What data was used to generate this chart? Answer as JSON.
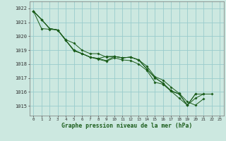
{
  "title": "Graphe pression niveau de la mer (hPa)",
  "bg_color": "#cce8e0",
  "grid_color": "#99cccc",
  "line_color": "#1a5c1a",
  "xlim": [
    -0.5,
    23.5
  ],
  "ylim": [
    1014.3,
    1022.5
  ],
  "yticks": [
    1015,
    1016,
    1017,
    1018,
    1019,
    1020,
    1021,
    1022
  ],
  "xticks": [
    0,
    1,
    2,
    3,
    4,
    5,
    6,
    7,
    8,
    9,
    10,
    11,
    12,
    13,
    14,
    15,
    16,
    17,
    18,
    19,
    20,
    21,
    22,
    23
  ],
  "line1": [
    1021.8,
    1021.2,
    1020.55,
    1020.45,
    1019.75,
    1019.5,
    1019.0,
    1018.75,
    1018.75,
    1018.5,
    1018.55,
    1018.45,
    1018.5,
    1018.3,
    1017.85,
    1017.1,
    1016.85,
    1016.35,
    1015.9,
    1015.3,
    1015.05,
    1015.5,
    null,
    null
  ],
  "line2": [
    1021.8,
    1021.2,
    1020.55,
    1020.45,
    1019.7,
    1019.0,
    1018.75,
    1018.5,
    1018.4,
    1018.25,
    1018.55,
    1018.45,
    1018.5,
    1018.3,
    1017.65,
    1017.05,
    1016.6,
    1016.1,
    1015.85,
    1015.05,
    1015.85,
    null,
    null,
    null
  ],
  "line3": [
    1021.8,
    1020.55,
    1020.5,
    1020.45,
    1019.7,
    1018.95,
    1018.75,
    1018.5,
    1018.35,
    1018.2,
    1018.45,
    1018.3,
    1018.25,
    1018.0,
    1017.55,
    1016.7,
    1016.55,
    1016.05,
    1015.85,
    1015.05,
    1015.85,
    1015.85,
    null,
    null
  ],
  "line4": [
    1021.8,
    1021.2,
    1020.55,
    1020.45,
    1019.7,
    1019.0,
    1018.75,
    1018.5,
    1018.4,
    1018.55,
    1018.55,
    1018.45,
    1018.5,
    1018.3,
    1017.65,
    1017.0,
    1016.65,
    1016.05,
    1015.55,
    1015.05,
    1015.55,
    1015.85,
    1015.85,
    null
  ]
}
